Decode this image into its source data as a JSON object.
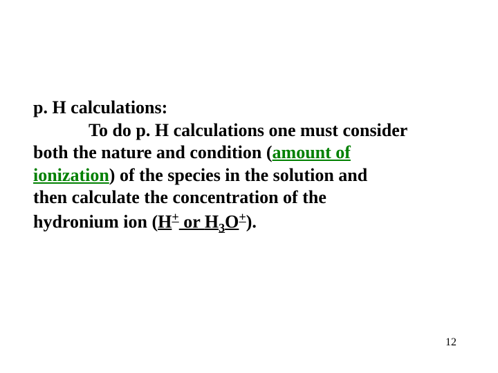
{
  "slide": {
    "heading": "p. H calculations:",
    "line2_pre": "To do p. H calculations one must consider",
    "line3_pre": "both the nature and condition (",
    "line3_green1": "amount of",
    "line4_green": "ionization",
    "line4_post": ") of the species in the solution and",
    "line5": "then calculate the concentration of the",
    "line6_pre": "hydronium ion (",
    "h_sym": "H",
    "plus": "+",
    "or": " or ",
    "h3o_h": "H",
    "h3o_3": "3",
    "h3o_o": "O",
    "h3o_plus": "+",
    "line6_post": ")."
  },
  "page_number": "12",
  "colors": {
    "text": "#000000",
    "accent": "#008000",
    "background": "#ffffff"
  },
  "typography": {
    "font_family": "Times New Roman",
    "font_size_pt": 20,
    "font_weight": "bold"
  }
}
